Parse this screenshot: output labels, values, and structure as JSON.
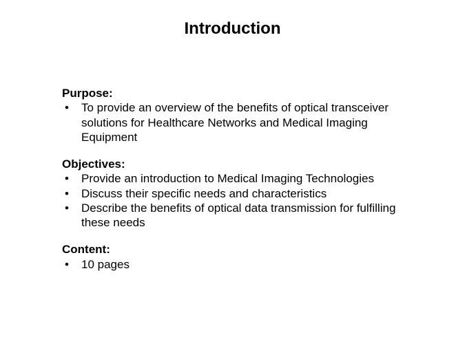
{
  "title": "Introduction",
  "sections": [
    {
      "label": "Purpose:",
      "items": [
        "To provide an overview of the benefits of optical transceiver solutions for Healthcare Networks and Medical Imaging Equipment"
      ]
    },
    {
      "label": "Objectives:",
      "items": [
        "Provide an introduction to Medical Imaging Technologies",
        "Discuss their specific needs and characteristics",
        "Describe the benefits of optical data transmission for fulfilling these needs"
      ]
    },
    {
      "label": "Content:",
      "items": [
        "10 pages"
      ]
    }
  ],
  "style": {
    "background_color": "#ffffff",
    "text_color": "#000000",
    "title_fontsize": 24,
    "body_fontsize": 17,
    "font_family": "Arial",
    "title_weight": "bold",
    "label_weight": "bold"
  }
}
